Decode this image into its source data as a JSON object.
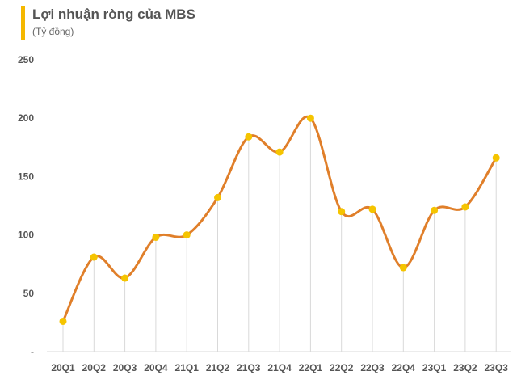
{
  "chart_data": {
    "type": "line",
    "title": "Lợi nhuận ròng của MBS",
    "subtitle": "(Tỷ đồng)",
    "xlabel": "",
    "ylabel": "",
    "categories": [
      "20Q1",
      "20Q2",
      "20Q3",
      "20Q4",
      "21Q1",
      "21Q2",
      "21Q3",
      "21Q4",
      "22Q1",
      "22Q2",
      "22Q3",
      "22Q4",
      "23Q1",
      "23Q2",
      "23Q3"
    ],
    "series": [
      {
        "values": [
          26,
          81,
          63,
          98,
          100,
          132,
          184,
          171,
          200,
          120,
          122,
          72,
          121,
          124,
          166
        ]
      }
    ],
    "ylim": [
      0,
      250
    ],
    "yticks": [
      "-",
      "50",
      "100",
      "150",
      "200",
      "250"
    ],
    "grid": false,
    "legend": "none",
    "colors": {
      "line": "#e07f2a",
      "marker": "#f5c400",
      "droplines": "#d9d9d9",
      "accent_bar": "#f5b800",
      "text": "#555555"
    }
  }
}
